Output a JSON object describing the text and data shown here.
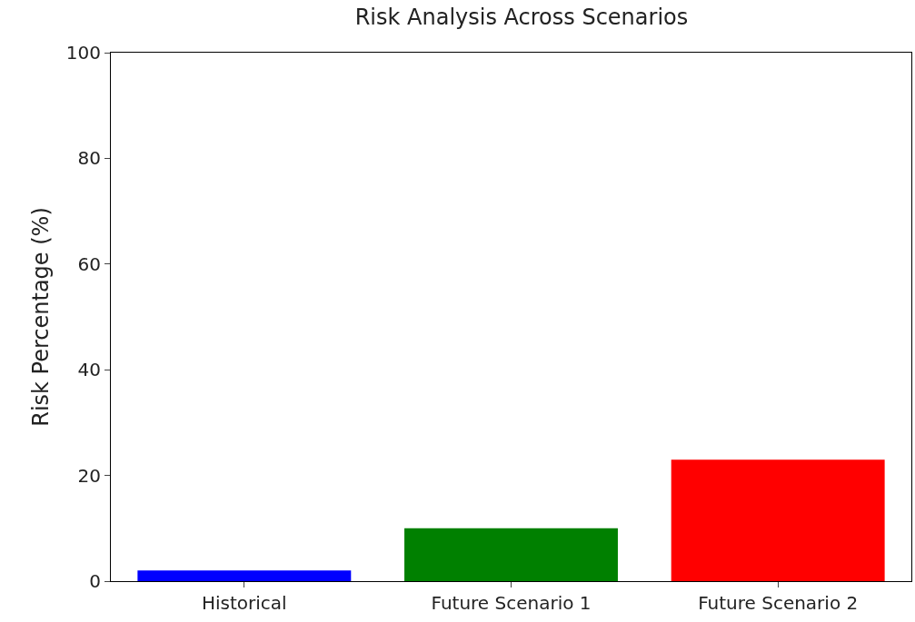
{
  "chart_data": {
    "type": "bar",
    "title": "Risk Analysis Across Scenarios",
    "ylabel": "Risk Percentage (%)",
    "categories": [
      "Historical",
      "Future Scenario 1",
      "Future Scenario 2"
    ],
    "values": [
      2,
      10,
      23
    ],
    "colors": [
      "#0000ff",
      "#008000",
      "#ff0000"
    ],
    "ylim": [
      0,
      100
    ],
    "yticks": [
      0,
      20,
      40,
      60,
      80,
      100
    ]
  }
}
